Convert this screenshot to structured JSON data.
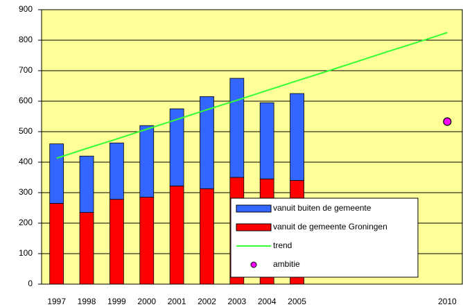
{
  "chart_data": {
    "type": "bar",
    "stacked": true,
    "categories": [
      "1997",
      "1998",
      "1999",
      "2000",
      "2001",
      "2002",
      "2003",
      "2004",
      "2005",
      null,
      null,
      null,
      null,
      "2010"
    ],
    "series": [
      {
        "name": "vanuit buiten de gemeente",
        "type": "bar",
        "color": "#3366ff",
        "values": [
          195,
          185,
          185,
          235,
          253,
          302,
          325,
          250,
          285,
          null,
          null,
          null,
          null,
          null
        ]
      },
      {
        "name": "vanuit de gemeente Groningen",
        "type": "bar",
        "color": "#ff0000",
        "values": [
          265,
          235,
          278,
          285,
          322,
          313,
          350,
          345,
          340,
          null,
          null,
          null,
          null,
          null
        ]
      },
      {
        "name": "trend",
        "type": "line",
        "color": "#33ff33",
        "values": [
          413,
          445,
          476,
          508,
          540,
          572,
          603,
          635,
          667,
          698,
          730,
          762,
          793,
          825
        ]
      },
      {
        "name": "ambitie",
        "type": "scatter",
        "color": "#ff00ff",
        "values": [
          null,
          null,
          null,
          null,
          null,
          null,
          null,
          null,
          null,
          null,
          null,
          null,
          null,
          533
        ]
      }
    ],
    "ylim": [
      0,
      900
    ],
    "yticks": [
      0,
      100,
      200,
      300,
      400,
      500,
      600,
      700,
      800,
      900
    ],
    "grid": true,
    "plot_background": "#ffff99",
    "legend": "lower-right"
  }
}
